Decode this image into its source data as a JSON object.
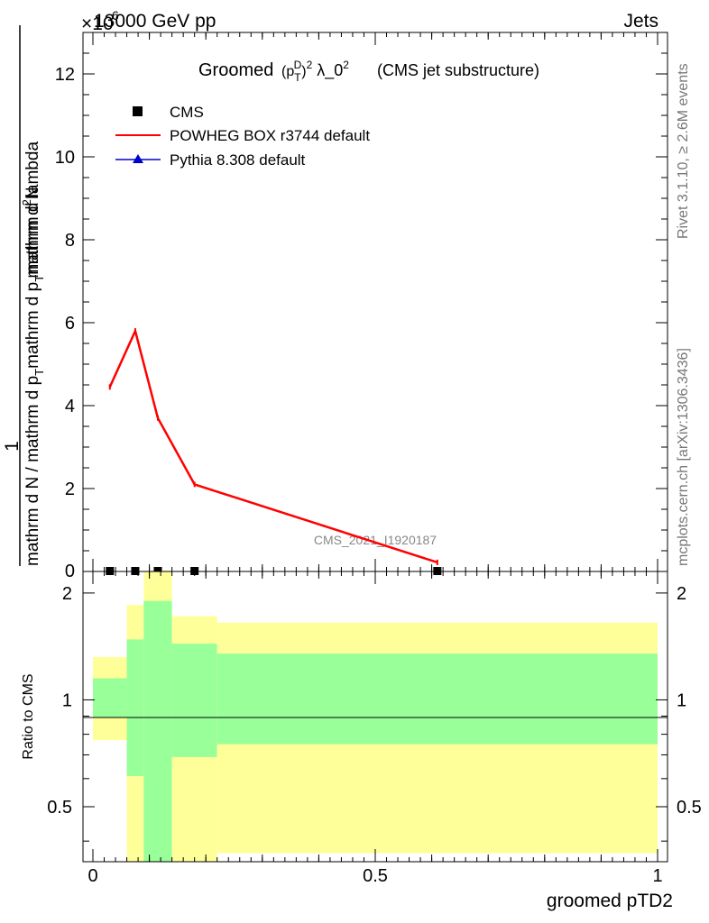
{
  "header": {
    "left": "13000 GeV pp",
    "right": "Jets",
    "exponent": "×10",
    "exponent_power": "6"
  },
  "side_labels": {
    "rivet": "Rivet 3.1.10, ≥ 2.6M events",
    "mcplots": "mcplots.cern.ch [arXiv:1306.3436]"
  },
  "title": {
    "prefix": "Groomed",
    "formula_p": "(p",
    "formula_T": "T",
    "formula_D": "D",
    "formula_rest": ")",
    "formula_sq": "2",
    "lambda": "λ_0",
    "lambda_sq": "2",
    "suffix": "(CMS jet substructure)"
  },
  "watermark": "CMS_2021_I1920187",
  "colors": {
    "powheg": "#ff0000",
    "pythia": "#0000cc",
    "cms": "#000000",
    "band_inner": "#99ff99",
    "band_outer": "#ffff99"
  },
  "chart_data": [
    {
      "type": "line",
      "panel": "main",
      "ylabel": "1 / mathrm d N / mathrm d p_T mathrm d p_T mathrm d lambda  mathrm d^2N",
      "ylabel_line1": "1",
      "ylabel_num": "mathrm d²N",
      "ylabel_den": "mathrm d N / mathrm d p",
      "ylabel_mid": "mathrm d p",
      "ylabel_mid2": "mathrm d lambda",
      "ylabel_sub": "T",
      "ylabel_sub2": "T",
      "ylabel_mid_full": "mathrm d N / mathrm d p",
      "ylabel_num_full": "mathrm d",
      "ylabel_top": "mathrm d p  mathrm d lambda",
      "ylabel_n": "N",
      "ylabel_2": "2",
      "xlim": [
        0,
        1
      ],
      "ylim": [
        0,
        13
      ],
      "yscale_factor": "×10^6",
      "yticks": [
        "2",
        "4",
        "6",
        "8",
        "10",
        "12"
      ],
      "legend": [
        "CMS",
        "POWHEG BOX r3744 default",
        "Pythia 8.308 default"
      ],
      "series": [
        {
          "name": "POWHEG BOX r3744 default",
          "x": [
            0.03,
            0.075,
            0.115,
            0.18,
            0.61
          ],
          "y": [
            4.45,
            5.8,
            3.7,
            2.1,
            0.22
          ]
        },
        {
          "name": "CMS",
          "x": [
            0.03,
            0.075,
            0.115,
            0.18,
            0.61
          ],
          "y": [
            0.0,
            0.0,
            0.0,
            0.0,
            0.0
          ]
        }
      ]
    },
    {
      "type": "area",
      "panel": "ratio",
      "ylabel": "Ratio to CMS",
      "xlabel": "groomed pTD2",
      "xlim": [
        0,
        1
      ],
      "ylim": [
        0.35,
        2.3
      ],
      "yscale": "log",
      "yticks": [
        "0.5",
        "1",
        "2"
      ],
      "xticks": [
        "0",
        "0.5",
        "1"
      ],
      "bins": [
        {
          "x0": 0.0,
          "x1": 0.06,
          "inner": [
            0.89,
            1.15
          ],
          "outer": [
            0.77,
            1.32
          ]
        },
        {
          "x0": 0.06,
          "x1": 0.09,
          "inner": [
            0.61,
            1.48
          ],
          "outer": [
            0.3,
            1.85
          ]
        },
        {
          "x0": 0.09,
          "x1": 0.14,
          "inner": [
            0.3,
            1.9
          ],
          "outer": [
            0.3,
            2.3
          ]
        },
        {
          "x0": 0.14,
          "x1": 0.22,
          "inner": [
            0.69,
            1.44
          ],
          "outer": [
            0.3,
            1.72
          ]
        },
        {
          "x0": 0.22,
          "x1": 1.0,
          "inner": [
            0.75,
            1.35
          ],
          "outer": [
            0.37,
            1.65
          ]
        }
      ]
    }
  ]
}
